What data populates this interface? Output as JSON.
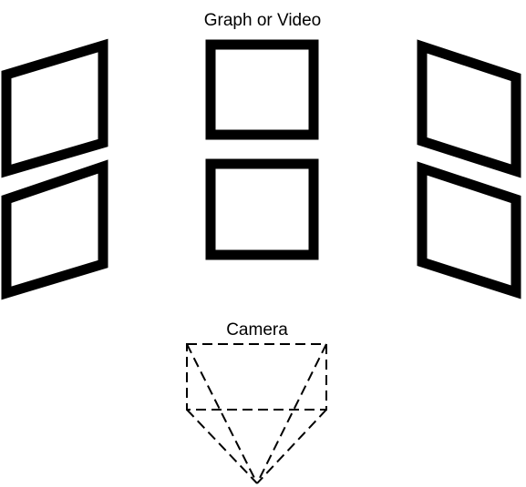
{
  "diagram": {
    "title": "Graph or Video",
    "camera_label": "Camera"
  },
  "colors": {
    "stroke": "#000000",
    "background": "#ffffff"
  }
}
